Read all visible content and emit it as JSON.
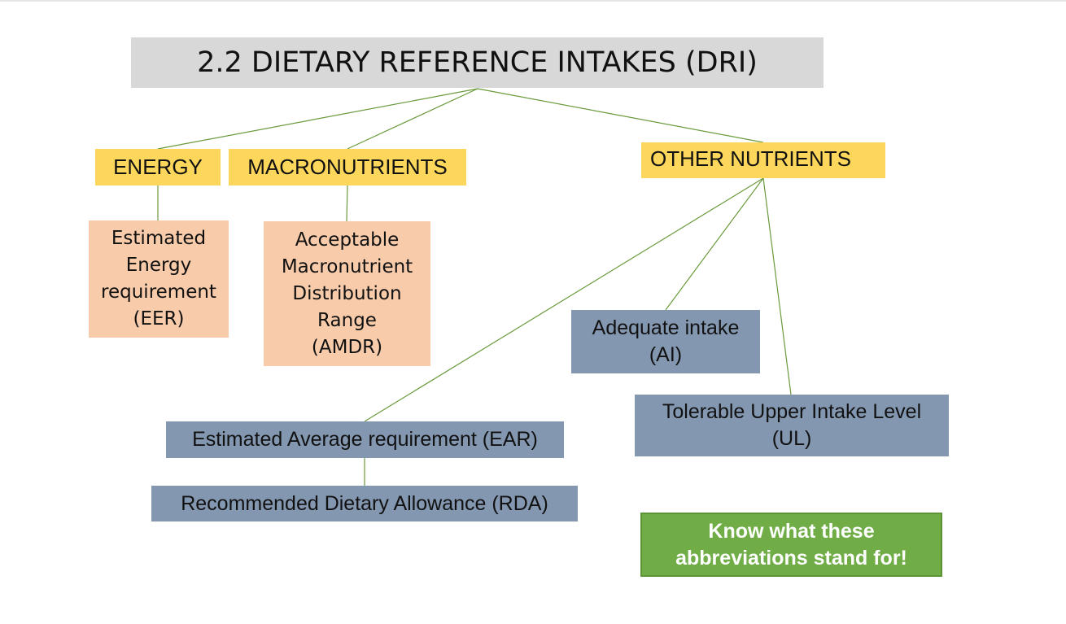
{
  "diagram": {
    "title": "2.2 DIETARY REFERENCE INTAKES (DRI)",
    "colors": {
      "title_bg": "#d8d8d8",
      "category_bg": "#fdd65c",
      "energy_macro_detail_bg": "#f8cbaa",
      "other_detail_bg": "#8397b0",
      "note_bg": "#70ad47",
      "connector": "#6a9a3c"
    },
    "categories": {
      "energy": "ENERGY",
      "macronutrients": "MACRONUTRIENTS",
      "other_nutrients": "OTHER NUTRIENTS"
    },
    "details": {
      "eer": [
        "Estimated",
        "Energy",
        "requirement",
        "(EER)"
      ],
      "amdr": [
        "Acceptable",
        "Macronutrient",
        "Distribution",
        "Range",
        "(AMDR)"
      ],
      "ai": [
        "Adequate intake",
        "(AI)"
      ],
      "ul": [
        "Tolerable Upper Intake Level",
        "(UL)"
      ],
      "ear": "Estimated Average requirement (EAR)",
      "rda": "Recommended Dietary Allowance (RDA)"
    },
    "note": [
      "Know what these",
      "abbreviations stand for!"
    ]
  }
}
